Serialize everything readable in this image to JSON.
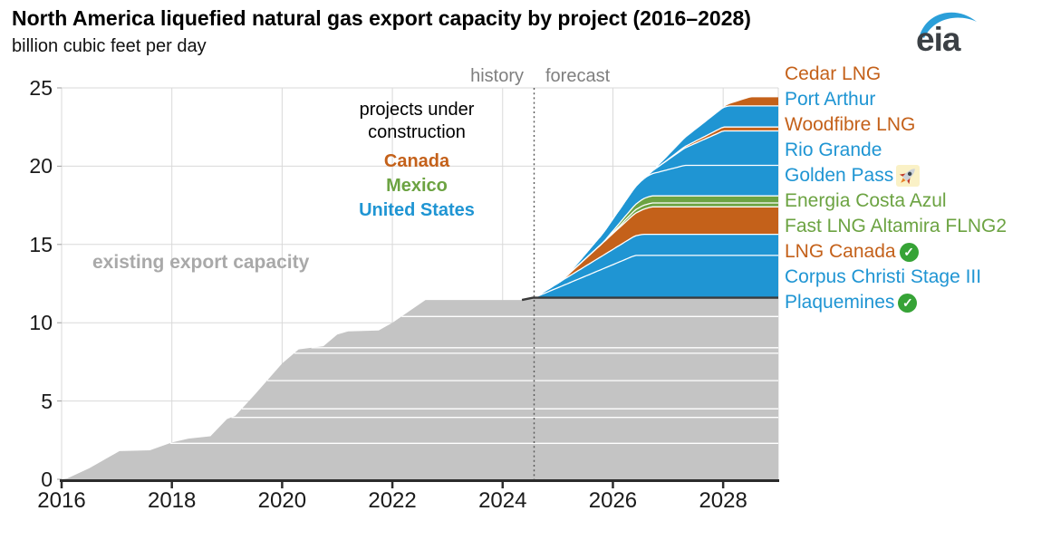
{
  "header": {
    "title": "North America liquefied natural gas export capacity by project (2016–2028)",
    "subtitle": "billion cubic feet per day"
  },
  "logo": {
    "text": "eia"
  },
  "colors": {
    "us": "#1f95d3",
    "canada": "#c4611a",
    "mexico": "#6ca342",
    "existing": "#c4c4c4",
    "grid": "#d9d9d9",
    "axis": "#2b2b2b",
    "muted_text": "#7f7f7f",
    "existing_label": "#a9a9a9",
    "dark_edge": "#3a3a3a",
    "divider": "#ffffff",
    "boundary_line": "#595959",
    "logo_swoosh": "#2b9fd9",
    "logo_text": "#3b4045"
  },
  "chart_data": {
    "type": "area",
    "title": "North America liquefied natural gas export capacity by project (2016–2028)",
    "xlabel": "",
    "ylabel": "billion cubic feet per day",
    "xlim": [
      2016,
      2029
    ],
    "ylim": [
      0,
      25
    ],
    "xticks": [
      "2016",
      "2018",
      "2020",
      "2022",
      "2024",
      "2026",
      "2028"
    ],
    "yticks": [
      "0",
      "5",
      "10",
      "15",
      "20",
      "25"
    ],
    "grid": "on",
    "legend_position": "right",
    "history_forecast": {
      "boundary_year": 2024.57,
      "history_label": "history",
      "forecast_label": "forecast"
    },
    "annotations": {
      "construction_note": "projects under construction",
      "construction_countries": [
        {
          "label": "Canada",
          "color_key": "canada"
        },
        {
          "label": "Mexico",
          "color_key": "mexico"
        },
        {
          "label": "United States",
          "color_key": "us"
        }
      ],
      "existing_area_label": "existing export capacity"
    },
    "existing_capacity": {
      "label": "existing export capacity",
      "color_key": "existing",
      "points": [
        [
          2016.0,
          0
        ],
        [
          2016.1,
          0.05
        ],
        [
          2016.5,
          0.7
        ],
        [
          2016.85,
          1.4
        ],
        [
          2017.05,
          1.8
        ],
        [
          2017.6,
          1.85
        ],
        [
          2018.0,
          2.35
        ],
        [
          2018.3,
          2.6
        ],
        [
          2018.7,
          2.75
        ],
        [
          2019.0,
          3.85
        ],
        [
          2019.15,
          4.05
        ],
        [
          2019.5,
          5.4
        ],
        [
          2020.0,
          7.4
        ],
        [
          2020.3,
          8.3
        ],
        [
          2020.75,
          8.5
        ],
        [
          2021.0,
          9.25
        ],
        [
          2021.2,
          9.45
        ],
        [
          2021.75,
          9.5
        ],
        [
          2022.0,
          10.0
        ],
        [
          2022.6,
          11.45
        ],
        [
          2024.35,
          11.45
        ],
        [
          2024.55,
          11.6
        ],
        [
          2029.0,
          11.6
        ]
      ],
      "facility_divider_levels": [
        2.3,
        3.95,
        4.5,
        6.3,
        8.05,
        8.4,
        10.4
      ]
    },
    "projects_under_construction": [
      {
        "name": "Plaquemines",
        "country": "United States",
        "color_key": "us",
        "start": 2024.57,
        "online_full": 2026.4,
        "capacity_bcfd": 2.7,
        "badge": "check"
      },
      {
        "name": "Corpus Christi Stage III",
        "country": "United States",
        "color_key": "us",
        "start": 2024.57,
        "online_full": 2026.55,
        "capacity_bcfd": 1.35,
        "badge": null
      },
      {
        "name": "LNG Canada",
        "country": "Canada",
        "color_key": "canada",
        "start": 2025.05,
        "online_full": 2026.7,
        "capacity_bcfd": 1.75,
        "badge": "check"
      },
      {
        "name": "Fast LNG Altamira FLNG2",
        "country": "Mexico",
        "color_key": "mexico",
        "start": 2025.85,
        "online_full": 2026.5,
        "capacity_bcfd": 0.25,
        "badge": null
      },
      {
        "name": "Energia Costa Azul",
        "country": "Mexico",
        "color_key": "mexico",
        "start": 2025.8,
        "online_full": 2026.6,
        "capacity_bcfd": 0.45,
        "badge": null
      },
      {
        "name": "Golden Pass",
        "country": "United States",
        "color_key": "us",
        "start": 2025.15,
        "online_full": 2027.3,
        "capacity_bcfd": 1.95,
        "badge": "rocket"
      },
      {
        "name": "Rio Grande",
        "country": "United States",
        "color_key": "us",
        "start": 2026.6,
        "online_full": 2028.0,
        "capacity_bcfd": 2.2,
        "badge": null
      },
      {
        "name": "Woodfibre LNG",
        "country": "Canada",
        "color_key": "canada",
        "start": 2026.9,
        "online_full": 2028.0,
        "capacity_bcfd": 0.25,
        "badge": null
      },
      {
        "name": "Port Arthur",
        "country": "United States",
        "color_key": "us",
        "start": 2026.7,
        "online_full": 2028.1,
        "capacity_bcfd": 1.35,
        "badge": null
      },
      {
        "name": "Cedar LNG",
        "country": "Canada",
        "color_key": "canada",
        "start": 2028.0,
        "online_full": 2028.5,
        "capacity_bcfd": 0.55,
        "badge": null
      }
    ],
    "legend_order_top_to_bottom": [
      "Cedar LNG",
      "Port Arthur",
      "Woodfibre LNG",
      "Rio Grande",
      "Golden Pass",
      "Energia Costa Azul",
      "Fast LNG Altamira FLNG2",
      "LNG Canada",
      "Corpus Christi Stage III",
      "Plaquemines"
    ]
  }
}
